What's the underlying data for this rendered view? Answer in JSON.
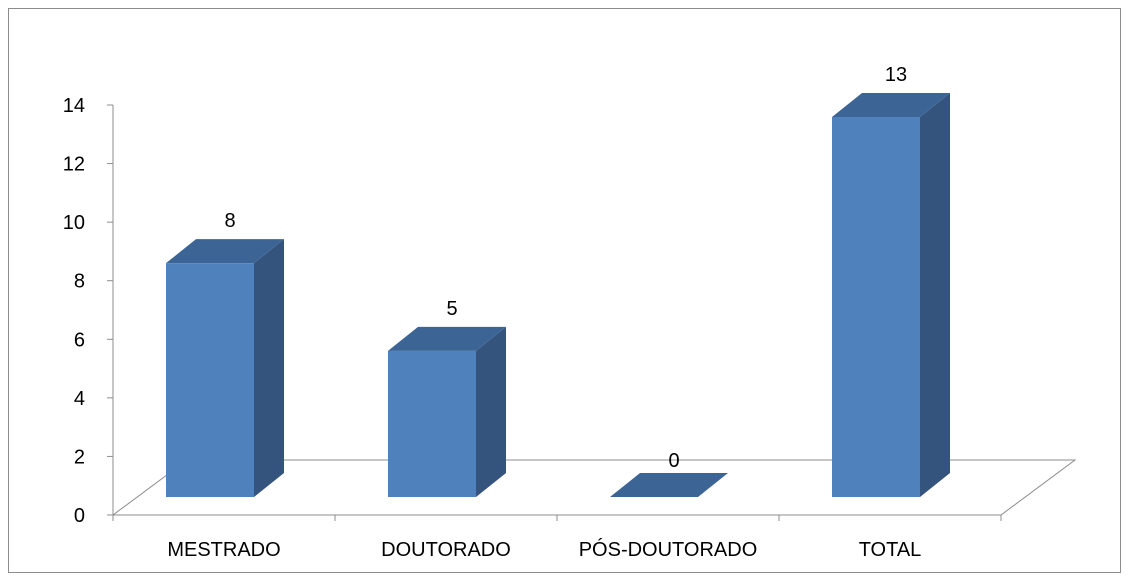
{
  "chart_data": {
    "type": "bar",
    "style": "3d-column",
    "categories": [
      "MESTRADO",
      "DOUTORADO",
      "PÓS-DOUTORADO",
      "TOTAL"
    ],
    "values": [
      8,
      5,
      0,
      13
    ],
    "data_labels": [
      "8",
      "5",
      "0",
      "13"
    ],
    "title": "",
    "xlabel": "",
    "ylabel": "",
    "ylim": [
      0,
      14
    ],
    "yticks": [
      0,
      2,
      4,
      6,
      8,
      10,
      12,
      14
    ],
    "ytick_labels": [
      "0",
      "2",
      "4",
      "6",
      "8",
      "10",
      "12",
      "14"
    ],
    "grid": false,
    "legend": "none",
    "colors": {
      "bar_front": "#4f81bd",
      "bar_side": "#34547d",
      "bar_top": "#3c6596",
      "axis": "#8c8c8c",
      "floor_line": "#8c8c8c"
    }
  }
}
